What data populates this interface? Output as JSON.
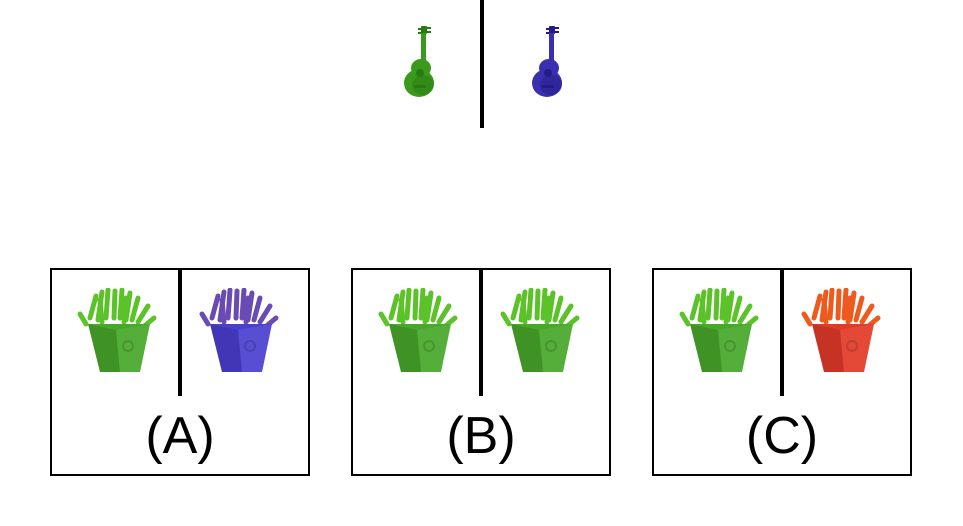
{
  "prompt": {
    "left_icon": {
      "name": "guitar-icon",
      "color": "#3a9a1c",
      "shade": "#2a7a12"
    },
    "right_icon": {
      "name": "guitar-icon",
      "color": "#3a2fb0",
      "shade": "#241c86"
    }
  },
  "options": [
    {
      "label": "(A)",
      "left_icon": {
        "name": "fries-icon",
        "color": "#5cc22a",
        "box": "#47a82a"
      },
      "right_icon": {
        "name": "fries-icon",
        "color": "#6a4bb4",
        "box": "#4a3fd0"
      }
    },
    {
      "label": "(B)",
      "left_icon": {
        "name": "fries-icon",
        "color": "#5cc22a",
        "box": "#47a82a"
      },
      "right_icon": {
        "name": "fries-icon",
        "color": "#5cc22a",
        "box": "#47a82a"
      }
    },
    {
      "label": "(C)",
      "left_icon": {
        "name": "fries-icon",
        "color": "#5cc22a",
        "box": "#47a82a"
      },
      "right_icon": {
        "name": "fries-icon",
        "color": "#ee5a1e",
        "box": "#e23a28"
      }
    }
  ]
}
